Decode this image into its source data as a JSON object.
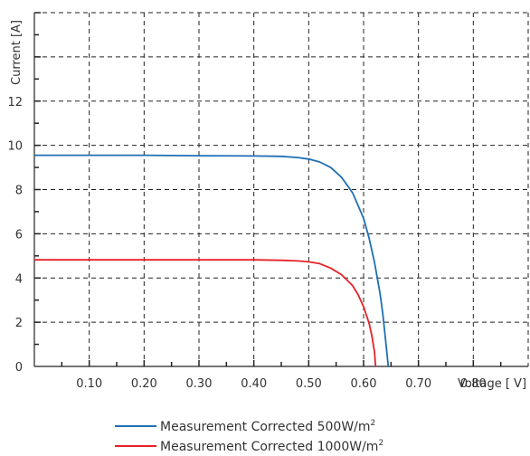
{
  "chart_data": {
    "type": "line",
    "xlabel": "Voltage [ V]",
    "ylabel": "Current [A]",
    "xlim": [
      0,
      0.9
    ],
    "ylim": [
      0,
      16
    ],
    "x_ticks": [
      0.1,
      0.2,
      0.3,
      0.4,
      0.5,
      0.6,
      0.7,
      0.8
    ],
    "x_tick_labels": [
      "0.10",
      "0.20",
      "0.30",
      "0.40",
      "0.50",
      "0.60",
      "0.70",
      "0.80"
    ],
    "y_ticks": [
      0,
      2,
      4,
      6,
      8,
      10,
      12
    ],
    "y_tick_labels": [
      "0",
      "2",
      "4",
      "6",
      "8",
      "10",
      "12"
    ],
    "grid": true,
    "legend_position": "bottom-center",
    "series": [
      {
        "name": "Measurement Corrected 500W/m",
        "name_sup": "2",
        "color": "#1f6fb4",
        "points": [
          [
            0.0,
            9.55
          ],
          [
            0.1,
            9.55
          ],
          [
            0.2,
            9.55
          ],
          [
            0.3,
            9.53
          ],
          [
            0.4,
            9.52
          ],
          [
            0.45,
            9.5
          ],
          [
            0.48,
            9.45
          ],
          [
            0.5,
            9.38
          ],
          [
            0.52,
            9.25
          ],
          [
            0.54,
            9.0
          ],
          [
            0.56,
            8.55
          ],
          [
            0.58,
            7.85
          ],
          [
            0.6,
            6.7
          ],
          [
            0.61,
            5.8
          ],
          [
            0.62,
            4.7
          ],
          [
            0.63,
            3.3
          ],
          [
            0.635,
            2.4
          ],
          [
            0.64,
            1.2
          ],
          [
            0.645,
            0.0
          ]
        ]
      },
      {
        "name": "Measurement Corrected 1000W/m",
        "name_sup": "2",
        "color": "#e52227",
        "points": [
          [
            0.0,
            4.82
          ],
          [
            0.1,
            4.82
          ],
          [
            0.2,
            4.82
          ],
          [
            0.3,
            4.82
          ],
          [
            0.4,
            4.82
          ],
          [
            0.45,
            4.8
          ],
          [
            0.48,
            4.77
          ],
          [
            0.5,
            4.73
          ],
          [
            0.52,
            4.65
          ],
          [
            0.54,
            4.45
          ],
          [
            0.56,
            4.15
          ],
          [
            0.58,
            3.65
          ],
          [
            0.59,
            3.25
          ],
          [
            0.6,
            2.7
          ],
          [
            0.61,
            1.95
          ],
          [
            0.615,
            1.4
          ],
          [
            0.62,
            0.65
          ],
          [
            0.622,
            0.0
          ]
        ]
      }
    ]
  }
}
